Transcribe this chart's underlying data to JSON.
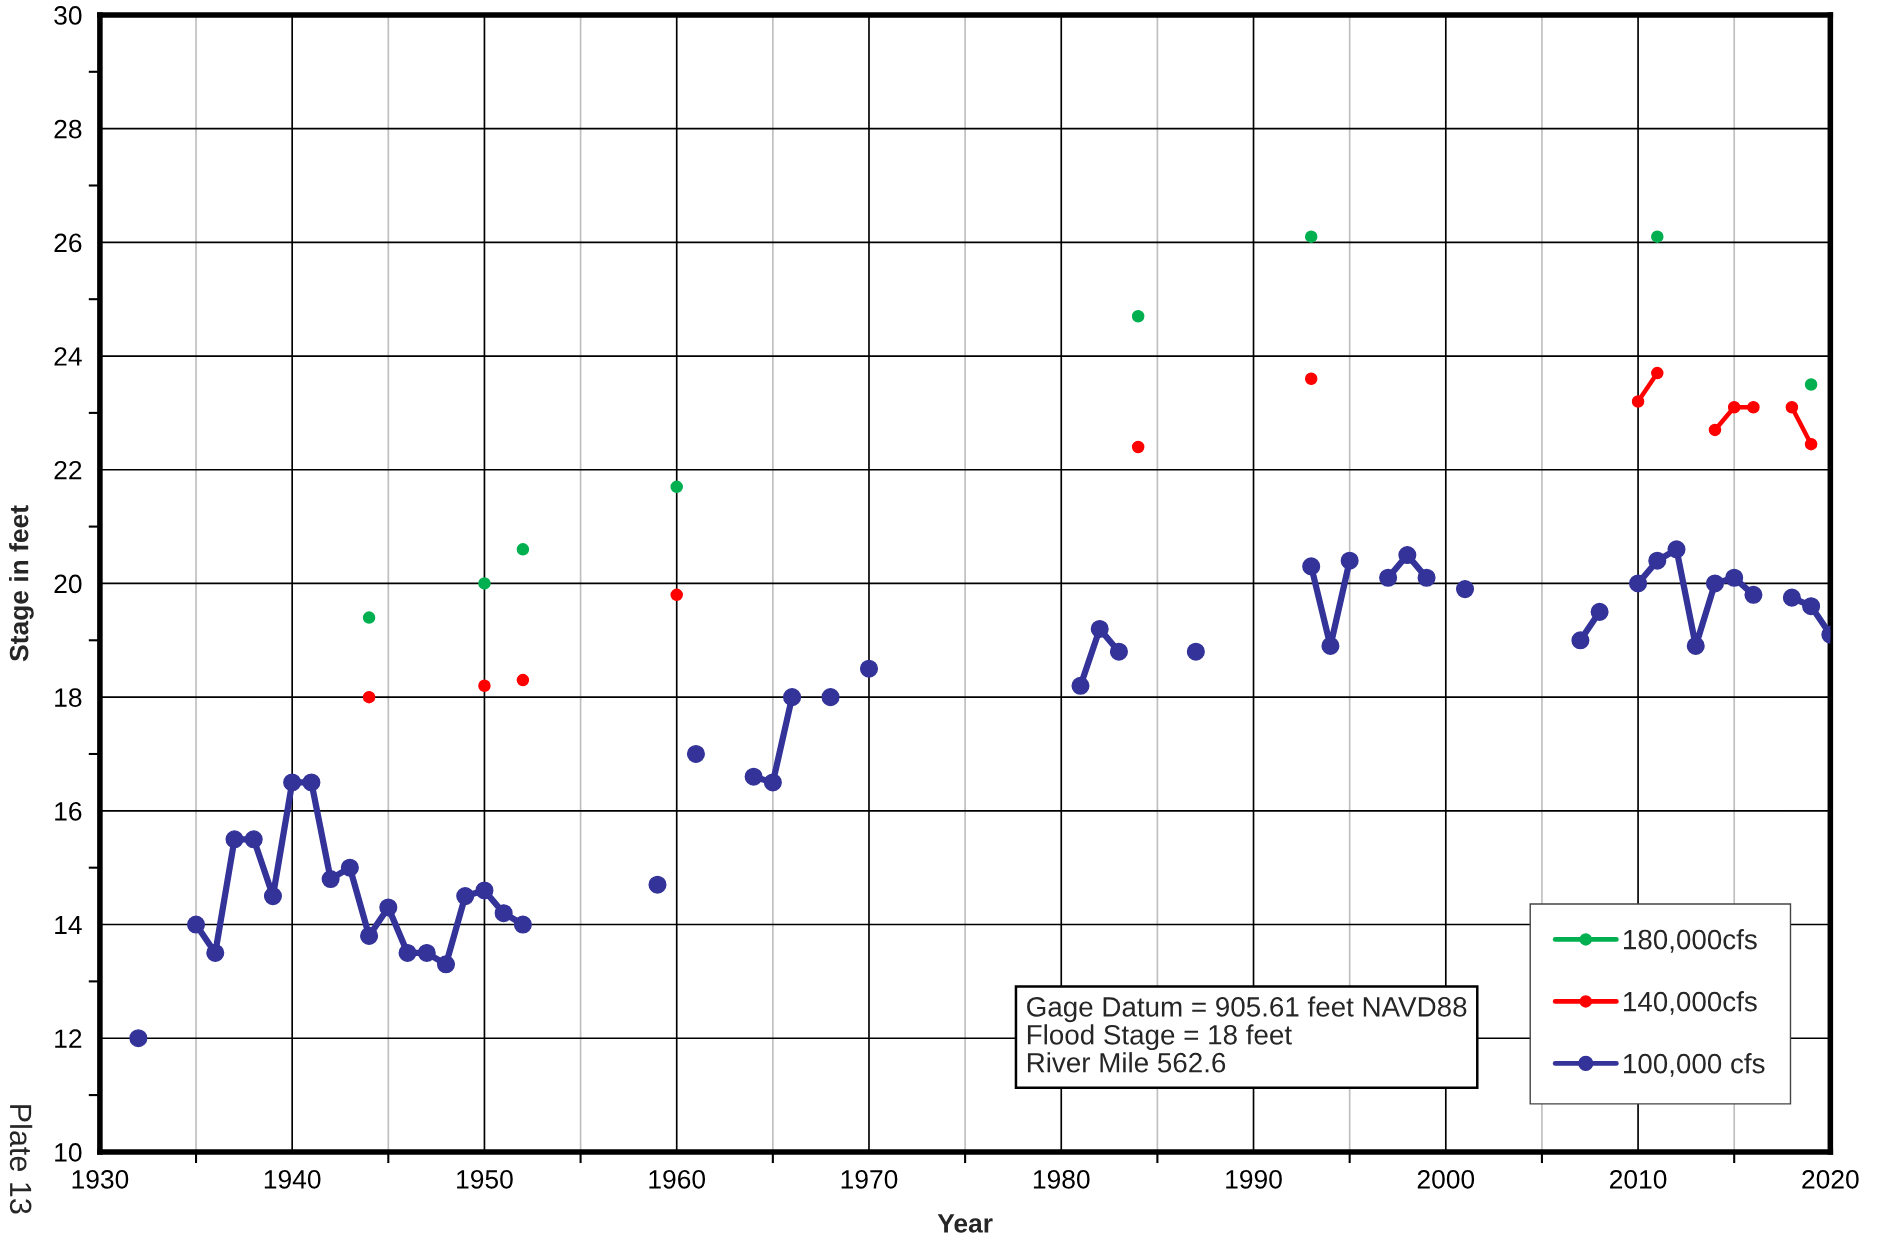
{
  "chart_data": {
    "type": "line",
    "xlabel": "Year",
    "ylabel": "Stage in feet",
    "xlim": [
      1930,
      2020
    ],
    "xticks": [
      1930,
      {
        "value": 1935,
        "label": null
      },
      1940,
      {
        "value": 1945,
        "label": null
      },
      1950,
      {
        "value": 1955,
        "label": null
      },
      1960,
      {
        "value": 1965,
        "label": null
      },
      1970,
      {
        "value": 1975,
        "label": null
      },
      1980,
      {
        "value": 1985,
        "label": null
      },
      1990,
      {
        "value": 1995,
        "label": null
      },
      2000,
      {
        "value": 2005,
        "label": null
      },
      2010,
      {
        "value": 2015,
        "label": null
      },
      2020
    ],
    "ylim": [
      10,
      30
    ],
    "yticks": [
      10,
      {
        "value": 11,
        "label": null
      },
      12,
      {
        "value": 13,
        "label": null
      },
      14,
      {
        "value": 15,
        "label": null
      },
      16,
      {
        "value": 17,
        "label": null
      },
      18,
      {
        "value": 19,
        "label": null
      },
      20,
      {
        "value": 21,
        "label": null
      },
      22,
      {
        "value": 23,
        "label": null
      },
      24,
      {
        "value": 25,
        "label": null
      },
      26,
      {
        "value": 27,
        "label": null
      },
      28,
      {
        "value": 29,
        "label": null
      },
      30
    ],
    "grid": true,
    "legend": "bottom right",
    "marker": "circle",
    "line_style": "solid",
    "series": [
      {
        "name": "180,000cfs",
        "color": "#00b050",
        "x": [
          1944,
          1945,
          1950,
          1951,
          1952,
          1953,
          1960,
          1961,
          1984,
          1985,
          1993,
          1994,
          2011,
          2012,
          2019
        ],
        "values": [
          19.4,
          null,
          20.0,
          null,
          20.6,
          null,
          21.7,
          null,
          24.7,
          null,
          26.1,
          null,
          26.1,
          null,
          23.5
        ]
      },
      {
        "name": "140,000cfs",
        "color": "#ff0000",
        "x": [
          1944,
          1945,
          1950,
          1951,
          1952,
          1953,
          1960,
          1961,
          1984,
          1985,
          1993,
          1994,
          2010,
          2011,
          2012,
          2014,
          2015,
          2016,
          2017,
          2018,
          2019
        ],
        "values": [
          18.0,
          null,
          18.2,
          null,
          18.3,
          null,
          19.8,
          null,
          22.4,
          null,
          23.6,
          null,
          23.2,
          23.7,
          null,
          22.7,
          23.1,
          23.1,
          null,
          23.1,
          22.45
        ]
      },
      {
        "name": "100,000 cfs",
        "color": "#333399",
        "x": [
          1932,
          1933,
          1935,
          1936,
          1937,
          1938,
          1939,
          1940,
          1941,
          1942,
          1943,
          1944,
          1945,
          1946,
          1947,
          1948,
          1949,
          1950,
          1951,
          1952,
          1953,
          1959,
          1960,
          1961,
          1962,
          1964,
          1965,
          1966,
          1967,
          1968,
          1969,
          1970,
          1971,
          1981,
          1982,
          1983,
          1984,
          1987,
          1988,
          1993,
          1994,
          1995,
          1996,
          1997,
          1998,
          1999,
          2000,
          2001,
          2002,
          2007,
          2008,
          2009,
          2010,
          2011,
          2012,
          2013,
          2014,
          2015,
          2016,
          2017,
          2018,
          2019,
          2020
        ],
        "values": [
          12.0,
          null,
          14.0,
          13.5,
          15.5,
          15.5,
          14.5,
          16.5,
          16.5,
          14.8,
          15.0,
          13.8,
          14.3,
          13.5,
          13.5,
          13.3,
          14.5,
          14.6,
          14.2,
          14.0,
          null,
          14.7,
          null,
          17.0,
          null,
          16.6,
          16.5,
          18.0,
          null,
          18.0,
          null,
          18.5,
          null,
          18.2,
          19.2,
          18.8,
          null,
          18.8,
          null,
          20.3,
          18.9,
          20.4,
          null,
          20.1,
          20.5,
          20.1,
          null,
          19.9,
          null,
          19.0,
          19.5,
          null,
          20.0,
          20.4,
          20.6,
          18.9,
          20.0,
          20.1,
          19.8,
          null,
          19.75,
          19.6,
          19.1
        ]
      }
    ],
    "annotations": [
      "Gage Datum = 905.61 feet NAVD88\nFlood Stage = 18 feet\nRiver Mile 562.6",
      "Plate 13"
    ]
  }
}
